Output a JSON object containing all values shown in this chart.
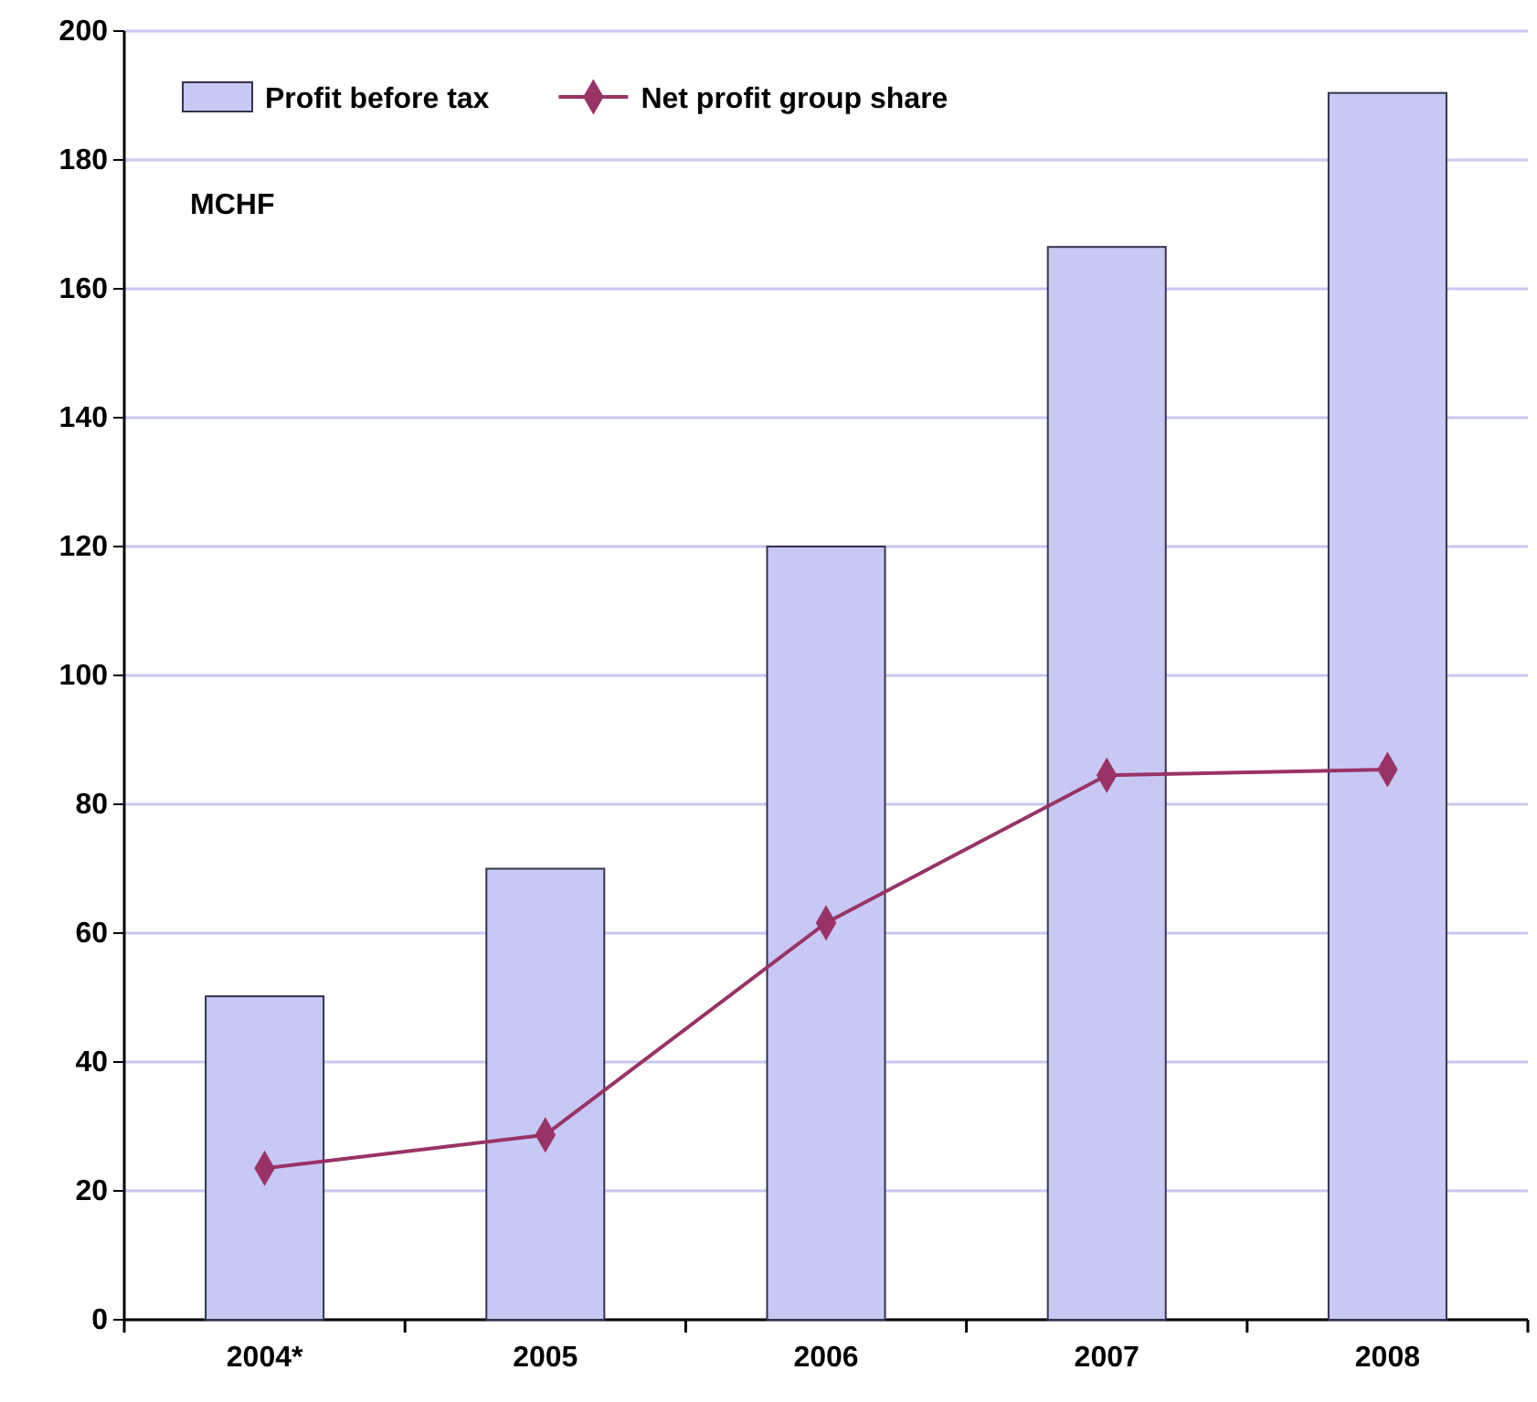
{
  "chart_data": {
    "type": "bar",
    "ylabel": "MCHF",
    "categories": [
      "2004*",
      "2005",
      "2006",
      "2007",
      "2008"
    ],
    "series": [
      {
        "name": "Profit before tax",
        "color": "#c8c8f5",
        "values": [
          50.2,
          70,
          120,
          166.5,
          190.4
        ]
      },
      {
        "name": "Net profit group share",
        "type": "line",
        "color": "#993366",
        "marker": "diamond",
        "values": [
          23.5,
          28.7,
          61.6,
          84.5,
          85.4
        ]
      }
    ],
    "ylim": [
      0,
      200
    ],
    "yticks": [
      0,
      20,
      40,
      60,
      80,
      100,
      120,
      140,
      160,
      180,
      200
    ],
    "grid": "y",
    "legend": "top left"
  }
}
